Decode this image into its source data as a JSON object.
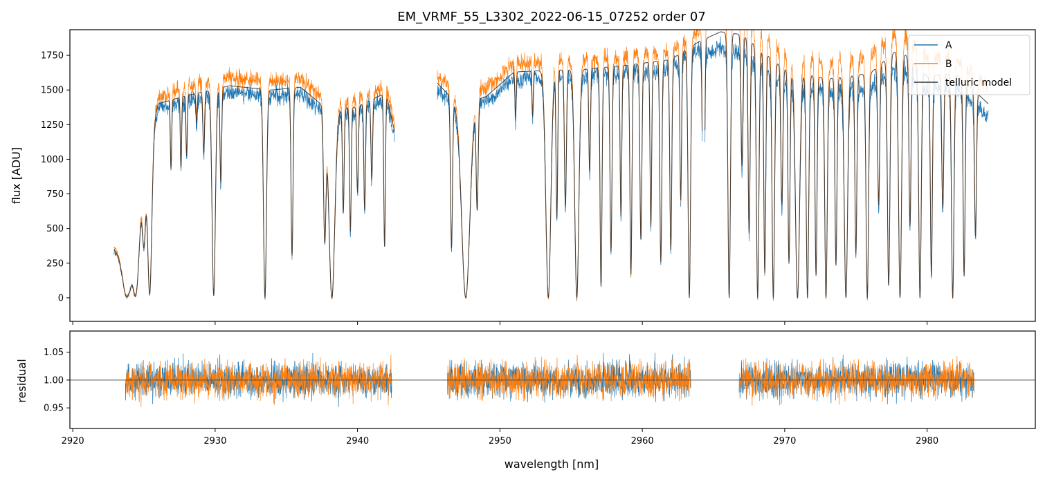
{
  "chart_data": [
    {
      "type": "line",
      "title": "EM_VRMF_55_L3302_2022-06-15_07252  order 07",
      "xlabel": "",
      "ylabel": "flux [ADU]",
      "xlim": [
        2919.8,
        2987.6
      ],
      "ylim": [
        -170,
        1935
      ],
      "x_ticks": [
        2920,
        2930,
        2940,
        2950,
        2960,
        2970,
        2980
      ],
      "y_ticks": [
        0,
        250,
        500,
        750,
        1000,
        1250,
        1500,
        1750
      ],
      "y_tick_labels": [
        "0",
        "250",
        "500",
        "750",
        "1000",
        "1250",
        "1500",
        "1750"
      ],
      "legend_position": "top-right",
      "series": [
        {
          "name": "A",
          "color": "#1f77b4"
        },
        {
          "name": "B",
          "color": "#ff7f0e"
        },
        {
          "name": "telluric model",
          "color": "#333333"
        }
      ],
      "segments": [
        [
          2922.9,
          2942.6
        ],
        [
          2945.6,
          2964.2
        ],
        [
          2964.4,
          2984.3
        ]
      ],
      "continuum_points": {
        "x": [
          2922.9,
          2924.0,
          2925.0,
          2926.0,
          2928.0,
          2931.0,
          2934.0,
          2936.0,
          2938.0,
          2940.0,
          2942.0,
          2942.6,
          2945.6,
          2947.0,
          2949.0,
          2951.0,
          2953.0,
          2956.0,
          2959.0,
          2962.0,
          2964.0,
          2965.5,
          2967.0,
          2970.0,
          2973.0,
          2976.0,
          2978.0,
          2980.0,
          2982.0,
          2984.3
        ],
        "y": [
          350,
          200,
          950,
          1400,
          1460,
          1530,
          1500,
          1520,
          1350,
          1380,
          1480,
          1200,
          1550,
          1400,
          1450,
          1630,
          1640,
          1650,
          1680,
          1720,
          1850,
          1920,
          1900,
          1650,
          1580,
          1620,
          1800,
          1600,
          1620,
          1400
        ]
      },
      "absorption_lines": [
        [
          2923.8,
          0.97,
          0.45
        ],
        [
          2924.4,
          0.98,
          0.4
        ],
        [
          2925.0,
          0.6,
          0.2
        ],
        [
          2925.4,
          0.98,
          0.25
        ],
        [
          2926.9,
          0.35,
          0.08
        ],
        [
          2927.6,
          0.35,
          0.08
        ],
        [
          2928.0,
          0.3,
          0.08
        ],
        [
          2928.7,
          0.15,
          0.08
        ],
        [
          2929.2,
          0.3,
          0.1
        ],
        [
          2929.9,
          0.99,
          0.2
        ],
        [
          2930.4,
          0.45,
          0.1
        ],
        [
          2933.5,
          1.0,
          0.18
        ],
        [
          2935.4,
          0.8,
          0.12
        ],
        [
          2937.7,
          0.7,
          0.15
        ],
        [
          2938.2,
          1.0,
          0.35
        ],
        [
          2939.0,
          0.55,
          0.1
        ],
        [
          2939.5,
          0.65,
          0.1
        ],
        [
          2940.0,
          0.45,
          0.1
        ],
        [
          2940.5,
          0.55,
          0.1
        ],
        [
          2941.0,
          0.4,
          0.1
        ],
        [
          2941.9,
          0.75,
          0.1
        ],
        [
          2946.6,
          0.75,
          0.12
        ],
        [
          2947.6,
          1.0,
          0.5
        ],
        [
          2948.4,
          0.55,
          0.12
        ],
        [
          2951.1,
          0.2,
          0.08
        ],
        [
          2952.3,
          0.2,
          0.08
        ],
        [
          2953.4,
          1.0,
          0.3
        ],
        [
          2954.0,
          0.65,
          0.1
        ],
        [
          2954.6,
          0.6,
          0.12
        ],
        [
          2955.4,
          1.0,
          0.25
        ],
        [
          2956.3,
          0.45,
          0.1
        ],
        [
          2957.1,
          0.95,
          0.12
        ],
        [
          2957.8,
          0.8,
          0.12
        ],
        [
          2958.5,
          0.65,
          0.1
        ],
        [
          2959.2,
          0.9,
          0.12
        ],
        [
          2959.9,
          0.75,
          0.12
        ],
        [
          2960.6,
          0.7,
          0.1
        ],
        [
          2961.3,
          0.85,
          0.12
        ],
        [
          2962.0,
          0.8,
          0.12
        ],
        [
          2962.7,
          0.6,
          0.1
        ],
        [
          2963.3,
          1.0,
          0.15
        ],
        [
          2964.3,
          1.0,
          0.12
        ],
        [
          2966.1,
          1.0,
          0.15
        ],
        [
          2967.0,
          0.5,
          0.12
        ],
        [
          2967.5,
          0.75,
          0.12
        ],
        [
          2968.1,
          1.0,
          0.15
        ],
        [
          2968.6,
          0.9,
          0.12
        ],
        [
          2969.2,
          1.0,
          0.15
        ],
        [
          2969.8,
          0.6,
          0.12
        ],
        [
          2970.3,
          0.85,
          0.12
        ],
        [
          2970.9,
          1.0,
          0.25
        ],
        [
          2971.6,
          1.0,
          0.15
        ],
        [
          2972.2,
          0.9,
          0.12
        ],
        [
          2972.9,
          1.0,
          0.15
        ],
        [
          2973.6,
          0.85,
          0.12
        ],
        [
          2974.3,
          1.0,
          0.2
        ],
        [
          2975.0,
          0.8,
          0.12
        ],
        [
          2975.8,
          1.0,
          0.15
        ],
        [
          2976.6,
          0.6,
          0.12
        ],
        [
          2977.3,
          0.95,
          0.15
        ],
        [
          2978.1,
          1.0,
          0.18
        ],
        [
          2978.8,
          0.7,
          0.12
        ],
        [
          2979.5,
          1.0,
          0.15
        ],
        [
          2980.3,
          0.9,
          0.12
        ],
        [
          2981.1,
          0.6,
          0.12
        ],
        [
          2981.8,
          1.0,
          0.15
        ],
        [
          2982.6,
          0.9,
          0.12
        ],
        [
          2983.4,
          0.7,
          0.12
        ]
      ]
    },
    {
      "type": "line",
      "title": "",
      "xlabel": "wavelength [nm]",
      "ylabel": "residual",
      "xlim": [
        2919.8,
        2987.6
      ],
      "ylim": [
        0.913,
        1.088
      ],
      "x_ticks": [
        2920,
        2930,
        2940,
        2950,
        2960,
        2970,
        2980
      ],
      "x_tick_labels": [
        "2920",
        "2930",
        "2940",
        "2950",
        "2960",
        "2970",
        "2980"
      ],
      "y_ticks": [
        0.95,
        1.0,
        1.05
      ],
      "y_tick_labels": [
        "0.95",
        "1.00",
        "1.05"
      ],
      "reference_line": 1.0,
      "segments": [
        [
          2923.7,
          2942.4
        ],
        [
          2946.3,
          2963.4
        ],
        [
          2966.8,
          2983.3
        ]
      ],
      "noise_amplitude": 0.028,
      "series": [
        {
          "name": "A",
          "color": "#1f77b4"
        },
        {
          "name": "B",
          "color": "#ff7f0e"
        }
      ]
    }
  ]
}
